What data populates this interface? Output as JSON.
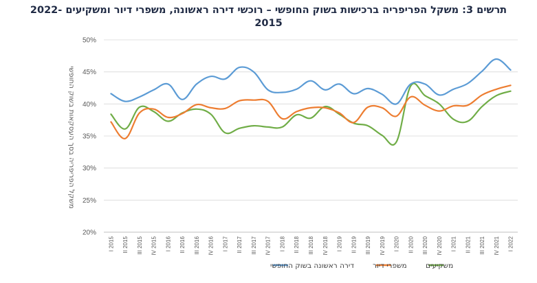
{
  "chart_data": {
    "type": "line",
    "title": "תרשים 3: משקל הפריפריה ברכישות בשוק החופשי – רוכשי דירה ראשונה, משפרי דיור ומשקיעים 2022-2015",
    "ylabel": "משקל הפריפריה בסך העסקאות בשוק החופשי",
    "xlabel": "",
    "y_ticks": [
      "20%",
      "25%",
      "30%",
      "35%",
      "40%",
      "45%",
      "50%"
    ],
    "ylim": [
      20,
      50
    ],
    "grid": "horizontal",
    "legend_position": "bottom",
    "categories": [
      "I 2015",
      "II 2015",
      "III 2015",
      "IV 2015",
      "I 2016",
      "II 2016",
      "III 2016",
      "IV 2016",
      "I 2017",
      "II 2017",
      "III 2017",
      "IV 2017",
      "I 2018",
      "II 2018",
      "III 2018",
      "IV 2018",
      "I 2019",
      "II 2019",
      "III 2019",
      "IV 2019",
      "I 2020",
      "II 2020",
      "III 2020",
      "IV 2020",
      "I 2021",
      "II 2021",
      "III 2021",
      "IV 2021",
      "I 2022"
    ],
    "series": [
      {
        "name": "דירה ראשונה בשוק החופשי",
        "color": "#5b9bd5",
        "values": [
          41.6,
          40.4,
          41.1,
          42.2,
          43.1,
          40.7,
          43.1,
          44.3,
          43.9,
          45.7,
          45.0,
          42.2,
          41.8,
          42.3,
          43.6,
          42.2,
          43.1,
          41.6,
          42.4,
          41.5,
          40.0,
          43.1,
          43.1,
          41.4,
          42.3,
          43.2,
          45.1,
          47.0,
          45.3
        ]
      },
      {
        "name": "משפרי דיור",
        "color": "#ed7d31",
        "values": [
          37.2,
          34.6,
          38.6,
          39.2,
          37.9,
          38.5,
          39.9,
          39.4,
          39.3,
          40.5,
          40.6,
          40.4,
          37.7,
          38.8,
          39.4,
          39.4,
          38.6,
          37.1,
          39.5,
          39.4,
          38.1,
          41.1,
          39.8,
          38.9,
          39.7,
          39.8,
          41.4,
          42.3,
          42.9
        ]
      },
      {
        "name": "משקיעים",
        "color": "#70ad47",
        "values": [
          38.4,
          36.1,
          39.5,
          38.8,
          37.3,
          38.6,
          39.2,
          38.4,
          35.5,
          36.2,
          36.6,
          36.4,
          36.4,
          38.3,
          37.8,
          39.6,
          38.4,
          37.0,
          36.6,
          35.1,
          34.1,
          42.8,
          41.3,
          40.0,
          37.6,
          37.3,
          39.6,
          41.3,
          42.0
        ]
      }
    ]
  }
}
